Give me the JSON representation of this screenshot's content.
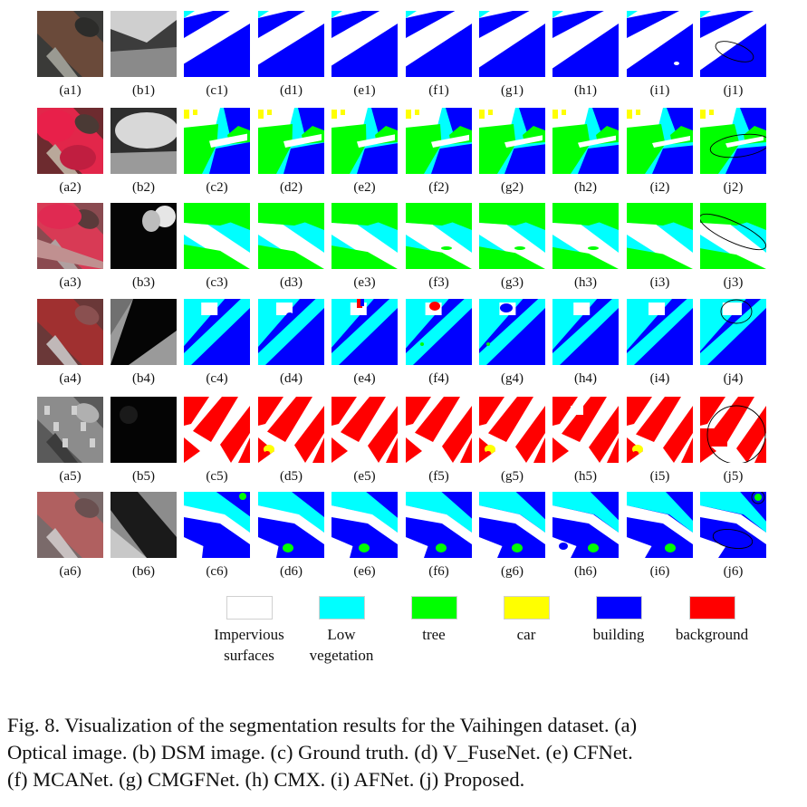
{
  "colors": {
    "impervious": "#ffffff",
    "low_vegetation": "#00ffff",
    "tree": "#00ff00",
    "car": "#ffff00",
    "building": "#0000ff",
    "background": "#ff0000"
  },
  "figure": {
    "rows": [
      {
        "labels": [
          "(a1)",
          "(b1)",
          "(c1)",
          "(d1)",
          "(e1)",
          "(f1)",
          "(g1)",
          "(h1)",
          "(i1)",
          "(j1)"
        ]
      },
      {
        "labels": [
          "(a2)",
          "(b2)",
          "(c2)",
          "(d2)",
          "(e2)",
          "(f2)",
          "(g2)",
          "(h2)",
          "(i2)",
          "(j2)"
        ]
      },
      {
        "labels": [
          "(a3)",
          "(b3)",
          "(c3)",
          "(d3)",
          "(e3)",
          "(f3)",
          "(g3)",
          "(h3)",
          "(i3)",
          "(j3)"
        ]
      },
      {
        "labels": [
          "(a4)",
          "(b4)",
          "(c4)",
          "(d4)",
          "(e4)",
          "(f4)",
          "(g4)",
          "(h4)",
          "(i4)",
          "(j4)"
        ]
      },
      {
        "labels": [
          "(a5)",
          "(b5)",
          "(c5)",
          "(d5)",
          "(e5)",
          "(f5)",
          "(g5)",
          "(h5)",
          "(i5)",
          "(j5)"
        ]
      },
      {
        "labels": [
          "(a6)",
          "(b6)",
          "(c6)",
          "(d6)",
          "(e6)",
          "(f6)",
          "(g6)",
          "(h6)",
          "(i6)",
          "(j6)"
        ]
      }
    ]
  },
  "legend": {
    "items": [
      {
        "line1": "Impervious",
        "line2": "surfaces",
        "color": "#ffffff"
      },
      {
        "line1": "Low",
        "line2": "vegetation",
        "color": "#00ffff"
      },
      {
        "line1": "tree",
        "line2": "",
        "color": "#00ff00"
      },
      {
        "line1": "car",
        "line2": "",
        "color": "#ffff00"
      },
      {
        "line1": "building",
        "line2": "",
        "color": "#0000ff"
      },
      {
        "line1": "background",
        "line2": "",
        "color": "#ff0000"
      }
    ]
  },
  "caption": {
    "line1": "Fig. 8.  Visualization of the segmentation results for the Vaihingen dataset. (a)",
    "line2": "Optical image. (b) DSM image. (c) Ground truth. (d) V_FuseNet. (e) CFNet.",
    "line3": "(f) MCANet. (g) CMGFNet. (h) CMX. (i) AFNet. (j) Proposed."
  }
}
